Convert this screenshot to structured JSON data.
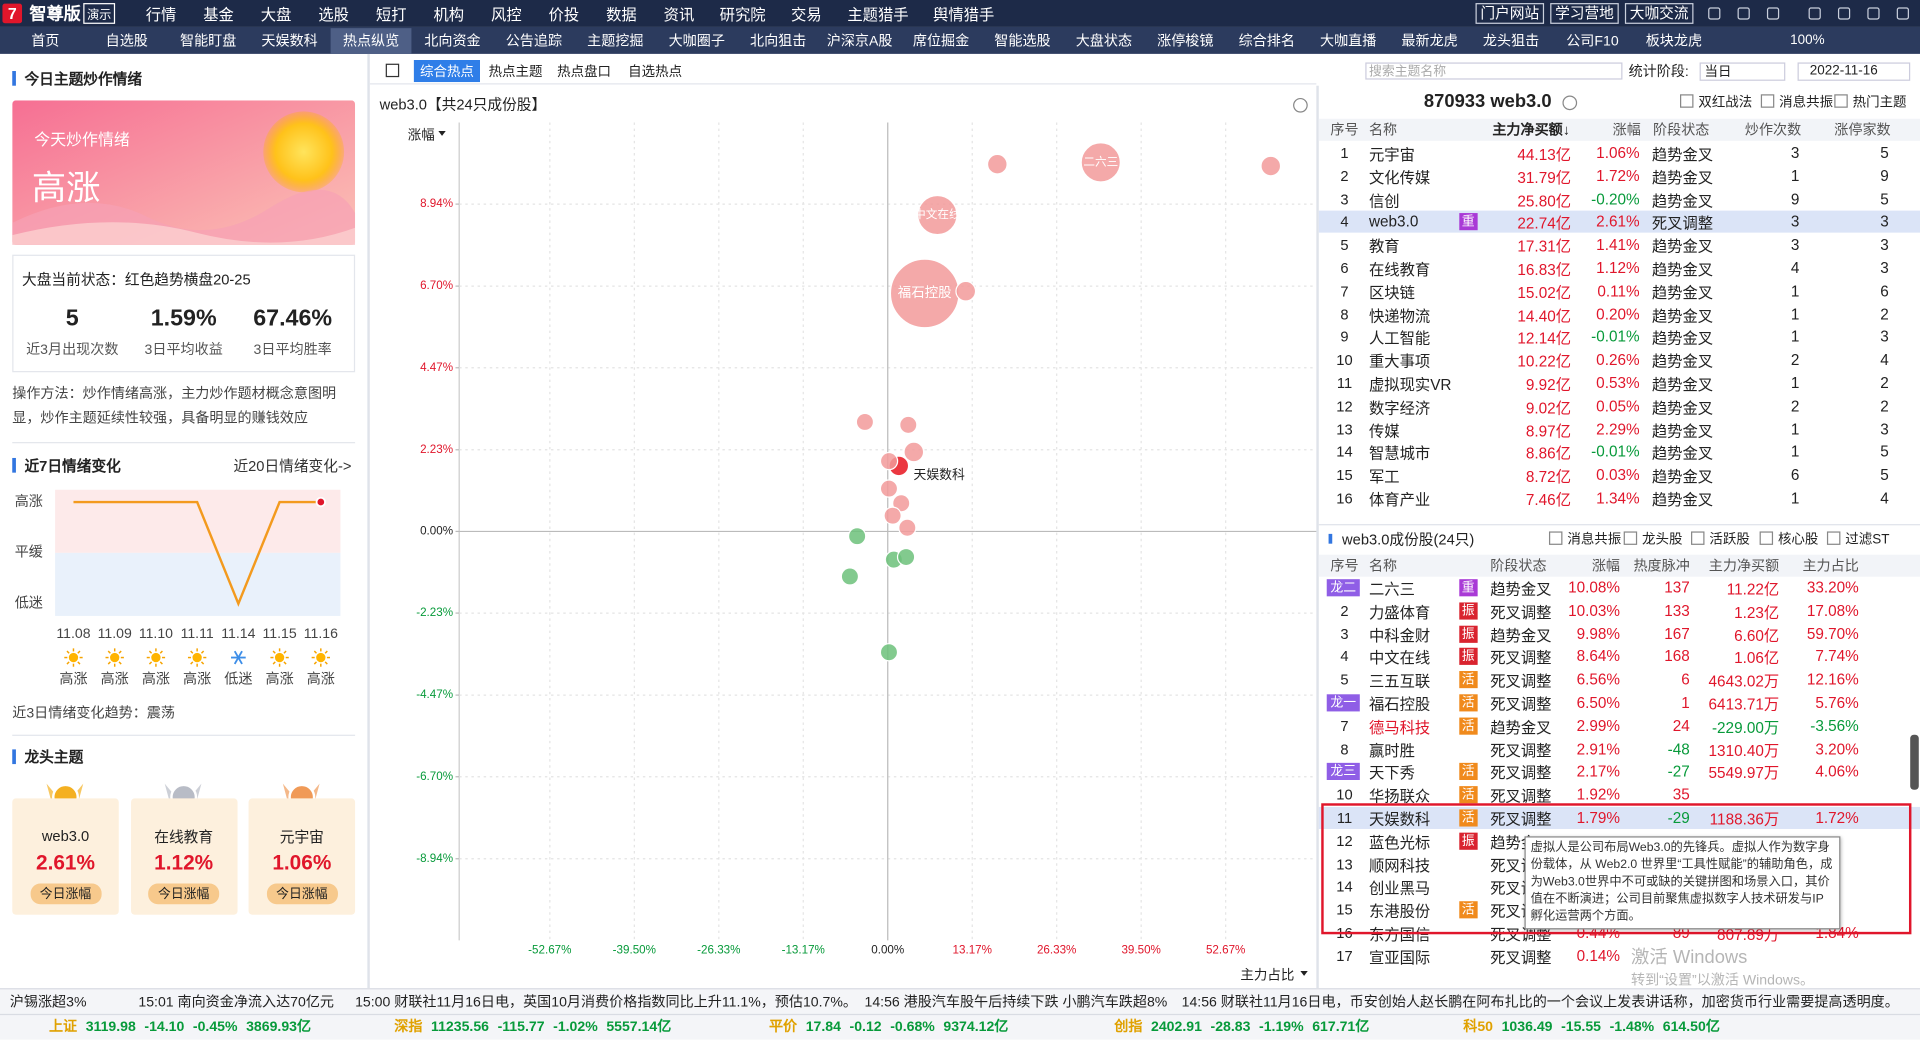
{
  "app": {
    "logo": "7",
    "brand": "智尊版",
    "badge": "演示",
    "menu": [
      "行情",
      "基金",
      "大盘",
      "选股",
      "短打",
      "机构",
      "风控",
      "价投",
      "数据",
      "资讯",
      "研究院",
      "交易",
      "主题猎手",
      "舆情猎手"
    ],
    "links": [
      "门户网站",
      "学习营地",
      "大咖交流"
    ]
  },
  "tabs": {
    "items": [
      "首页",
      "自选股",
      "智能盯盘",
      "天娱数科",
      "热点纵览",
      "北向资金",
      "公告追踪",
      "主题挖掘",
      "大咖圈子",
      "北向狙击",
      "沪深京A股",
      "席位掘金",
      "智能选股",
      "大盘状态",
      "涨停梭镜",
      "综合排名",
      "大咖直播",
      "最新龙虎",
      "龙头狙击",
      "公司F10",
      "板块龙虎"
    ],
    "active": 4,
    "zoom": "100%"
  },
  "left": {
    "title": "今日主题炒作情绪",
    "banner_caption": "今天炒作情绪",
    "banner_mood": "高涨",
    "status": "大盘当前状态：红色趋势横盘20-25",
    "stats": [
      {
        "value": "5",
        "label": "近3月出现次数"
      },
      {
        "value": "1.59%",
        "label": "3日平均收益"
      },
      {
        "value": "67.46%",
        "label": "3日平均胜率"
      }
    ],
    "method": "操作方法：炒作情绪高涨，主力炒作题材概念意图明显，炒作主题延续性较强，具备明显的赚钱效应",
    "trend_title": "近7日情绪变化",
    "trend_link": "近20日情绪变化->",
    "levels": [
      "高涨",
      "平缓",
      "低迷"
    ],
    "dates": [
      "11.08",
      "11.09",
      "11.10",
      "11.11",
      "11.14",
      "11.15",
      "11.16"
    ],
    "moods": [
      "高涨",
      "高涨",
      "高涨",
      "高涨",
      "低迷",
      "高涨",
      "高涨"
    ],
    "trend_summary": "近3日情绪变化趋势：震荡",
    "leaders_title": "龙头主题",
    "leaders": [
      {
        "name": "web3.0",
        "change": "2.61%",
        "label": "今日涨幅"
      },
      {
        "name": "在线教育",
        "change": "1.12%",
        "label": "今日涨幅"
      },
      {
        "name": "元宇宙",
        "change": "1.06%",
        "label": "今日涨幅"
      }
    ]
  },
  "middle": {
    "subtabs": [
      "综合热点",
      "热点主题",
      "热点盘口",
      "自选热点"
    ],
    "active": 0
  },
  "chart_data": {
    "type": "scatter",
    "title": "web3.0【共24只成份股】",
    "ylabel": "涨幅",
    "xlabel": "主力占比",
    "xlim": [
      -66.8,
      66.8
    ],
    "ylim": [
      -11.17,
      11.17
    ],
    "xticks": [
      {
        "value": -52.67,
        "label": "-52.67%"
      },
      {
        "value": -39.5,
        "label": "-39.50%"
      },
      {
        "value": -26.33,
        "label": "-26.33%"
      },
      {
        "value": -13.17,
        "label": "-13.17%"
      },
      {
        "value": 0,
        "label": "0.00%"
      },
      {
        "value": 13.17,
        "label": "13.17%"
      },
      {
        "value": 26.33,
        "label": "26.33%"
      },
      {
        "value": 39.5,
        "label": "39.50%"
      },
      {
        "value": 52.67,
        "label": "52.67%"
      }
    ],
    "yticks": [
      {
        "value": 8.94,
        "label": "8.94%"
      },
      {
        "value": 6.7,
        "label": "6.70%"
      },
      {
        "value": 4.47,
        "label": "4.47%"
      },
      {
        "value": 2.23,
        "label": "2.23%"
      },
      {
        "value": 0,
        "label": "0.00%"
      },
      {
        "value": -2.23,
        "label": "-2.23%"
      },
      {
        "value": -4.47,
        "label": "-4.47%"
      },
      {
        "value": -6.7,
        "label": "-6.70%"
      },
      {
        "value": -8.94,
        "label": "-8.94%"
      }
    ],
    "grid": true,
    "up_color": "#f29a9a",
    "down_color": "#6cc17a",
    "highlight_color": "#e8141e",
    "x": [
      17.08,
      33.2,
      59.7,
      7.74,
      5.76,
      12.16,
      -3.56,
      3.2,
      4.06,
      1.72,
      0.2,
      0.19,
      2.1,
      0.76,
      3.05,
      -4.77,
      0.95,
      2.86,
      -5.9,
      0.19
    ],
    "values": [
      10.03,
      10.08,
      9.98,
      8.64,
      6.5,
      6.56,
      2.99,
      2.91,
      2.17,
      1.79,
      1.92,
      1.17,
      0.77,
      0.43,
      0.1,
      -0.13,
      -0.77,
      -0.7,
      -1.23,
      -3.3
    ],
    "sizes": [
      8,
      16,
      8,
      16,
      28,
      8,
      7,
      7,
      8,
      8,
      7,
      7,
      7,
      7,
      7,
      7,
      7,
      7,
      7,
      7
    ],
    "labels": [
      null,
      "二六三",
      null,
      "中文在线",
      "福石控股",
      null,
      null,
      null,
      null,
      "天娱数科",
      null,
      null,
      null,
      null,
      null,
      null,
      null,
      null,
      null,
      null
    ]
  },
  "right": {
    "code_name": "870933 web3.0",
    "options": [
      "双红战法",
      "消息共振",
      "热门主题"
    ],
    "search_placeholder": "搜索主题名称",
    "period_label": "统计阶段:",
    "period": "当日",
    "date": "2022-11-16",
    "themes": {
      "headers": [
        "序号",
        "名称",
        "主力净买额↓",
        "涨幅",
        "阶段状态",
        "炒作次数",
        "涨停家数"
      ],
      "selected_row": 3,
      "rows": [
        [
          "1",
          "元宇宙",
          null,
          "44.13亿",
          "1.06%",
          "趋势金叉",
          "3",
          "5"
        ],
        [
          "2",
          "文化传媒",
          null,
          "31.79亿",
          "1.72%",
          "趋势金叉",
          "1",
          "9"
        ],
        [
          "3",
          "信创",
          null,
          "25.80亿",
          "-0.20%",
          "趋势金叉",
          "9",
          "5"
        ],
        [
          "4",
          "web3.0",
          "重",
          "22.74亿",
          "2.61%",
          "死叉调整",
          "3",
          "3"
        ],
        [
          "5",
          "教育",
          null,
          "17.31亿",
          "1.41%",
          "趋势金叉",
          "3",
          "3"
        ],
        [
          "6",
          "在线教育",
          null,
          "16.83亿",
          "1.12%",
          "趋势金叉",
          "4",
          "3"
        ],
        [
          "7",
          "区块链",
          null,
          "15.02亿",
          "0.11%",
          "趋势金叉",
          "1",
          "6"
        ],
        [
          "8",
          "快递物流",
          null,
          "14.40亿",
          "0.20%",
          "趋势金叉",
          "1",
          "2"
        ],
        [
          "9",
          "人工智能",
          null,
          "12.14亿",
          "-0.01%",
          "趋势金叉",
          "1",
          "3"
        ],
        [
          "10",
          "重大事项",
          null,
          "10.22亿",
          "0.26%",
          "趋势金叉",
          "2",
          "4"
        ],
        [
          "11",
          "虚拟现实VR",
          null,
          "9.92亿",
          "0.53%",
          "趋势金叉",
          "1",
          "2"
        ],
        [
          "12",
          "数字经济",
          null,
          "9.02亿",
          "0.05%",
          "趋势金叉",
          "2",
          "2"
        ],
        [
          "13",
          "传媒",
          null,
          "8.97亿",
          "2.29%",
          "趋势金叉",
          "1",
          "3"
        ],
        [
          "14",
          "智慧城市",
          null,
          "8.86亿",
          "-0.01%",
          "趋势金叉",
          "1",
          "5"
        ],
        [
          "15",
          "军工",
          null,
          "8.72亿",
          "0.03%",
          "趋势金叉",
          "6",
          "5"
        ],
        [
          "16",
          "体育产业",
          null,
          "7.46亿",
          "1.34%",
          "趋势金叉",
          "1",
          "4"
        ]
      ]
    },
    "stocks": {
      "title": "web3.0成份股(24只)",
      "filters": [
        "消息共振",
        "龙头股",
        "活跃股",
        "核心股",
        "过滤ST"
      ],
      "headers": [
        "序号",
        "名称",
        "阶段状态",
        "涨幅",
        "热度脉冲",
        "主力净买额",
        "主力占比"
      ],
      "selected_row": 10,
      "rows": [
        [
          "1",
          "龙二",
          "二六三",
          "重",
          "趋势金叉",
          "10.08%",
          "137",
          "11.22亿",
          "33.20%"
        ],
        [
          "2",
          null,
          "力盛体育",
          "振",
          "死叉调整",
          "10.03%",
          "133",
          "1.23亿",
          "17.08%"
        ],
        [
          "3",
          null,
          "中科金财",
          "振",
          "趋势金叉",
          "9.98%",
          "167",
          "6.60亿",
          "59.70%"
        ],
        [
          "4",
          null,
          "中文在线",
          "振",
          "死叉调整",
          "8.64%",
          "168",
          "1.06亿",
          "7.74%"
        ],
        [
          "5",
          null,
          "三五互联",
          "活",
          "死叉调整",
          "6.56%",
          "6",
          "4643.02万",
          "12.16%"
        ],
        [
          "6",
          "龙一",
          "福石控股",
          "活",
          "死叉调整",
          "6.50%",
          "1",
          "6413.71万",
          "5.76%"
        ],
        [
          "7",
          null,
          "德马科技",
          "活",
          "趋势金叉",
          "2.99%",
          "24",
          "-229.00万",
          "-3.56%"
        ],
        [
          "8",
          null,
          "赢时胜",
          null,
          "死叉调整",
          "2.91%",
          "-48",
          "1310.40万",
          "3.20%"
        ],
        [
          "9",
          "龙三",
          "天下秀",
          "活",
          "死叉调整",
          "2.17%",
          "-27",
          "5549.97万",
          "4.06%"
        ],
        [
          "10",
          null,
          "华扬联众",
          "活",
          "死叉调整",
          "1.92%",
          "35",
          null,
          null
        ],
        [
          "11",
          null,
          "天娱数科",
          "活",
          "死叉调整",
          "1.79%",
          "-29",
          "1188.36万",
          "1.72%"
        ],
        [
          "12",
          null,
          "蓝色光标",
          "振",
          "趋势金叉",
          null,
          null,
          null,
          null
        ],
        [
          "13",
          null,
          "顺网科技",
          null,
          "死叉调整",
          null,
          null,
          null,
          null
        ],
        [
          "14",
          null,
          "创业黑马",
          null,
          "死叉调整",
          null,
          null,
          null,
          null
        ],
        [
          "15",
          null,
          "东港股份",
          "活",
          "死叉调整",
          null,
          null,
          null,
          null
        ],
        [
          "16",
          null,
          "东方国信",
          null,
          "死叉调整",
          "0.44%",
          "89",
          "807.89万",
          "1.84%"
        ],
        [
          "17",
          null,
          "宣亚国际",
          null,
          "死叉调整",
          "0.14%",
          null,
          null,
          null
        ]
      ],
      "tooltip": "虚拟人是公司布局Web3.0的先锋兵。虚拟人作为数字身份载体，从 Web2.0 世界里“工具性赋能”的辅助角色，成为Web3.0世界中不可或缺的关键拼图和场景入口，其价值在不断演进；公司目前聚焦虚拟数字人技术研发与IP孵化运营两个方面。"
    }
  },
  "news": [
    "沪锡涨超3%",
    "15:01 南向资金净流入达70亿元",
    "15:00 财联社11月16日电，英国10月消费价格指数同比上升11.1%，预估10.7%。",
    "14:56 港股汽车股午后持续下跌 小鹏汽车跌超8%",
    "14:56 财联社11月16日电，币安创始人赵长鹏在阿布扎比的一个会议上发表讲话称，加密货币行业需要提高透明度。"
  ],
  "indices": [
    [
      "上证",
      "3119.98",
      "-14.10",
      "-0.45%",
      "3869.93亿"
    ],
    [
      "深指",
      "11235.56",
      "-115.77",
      "-1.02%",
      "5557.14亿"
    ],
    [
      "平价",
      "17.84",
      "-0.12",
      "-0.68%",
      "9374.12亿"
    ],
    [
      "创指",
      "2402.91",
      "-28.83",
      "-1.19%",
      "617.71亿"
    ],
    [
      "科50",
      "1036.49",
      "-15.55",
      "-1.48%",
      "614.50亿"
    ]
  ],
  "watermark": [
    "激活 Windows",
    "转到“设置”以激活 Windows。"
  ]
}
